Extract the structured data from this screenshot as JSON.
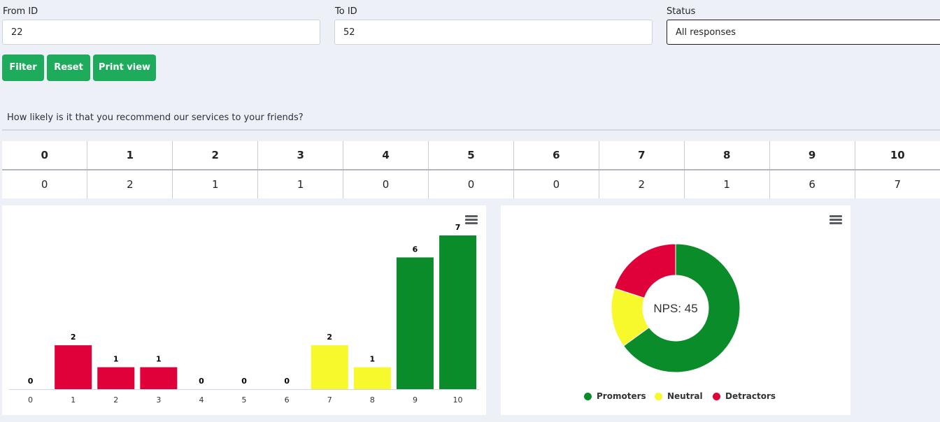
{
  "filters": {
    "from": {
      "label": "From ID",
      "value": "22"
    },
    "to": {
      "label": "To ID",
      "value": "52"
    },
    "status": {
      "label": "Status",
      "value": "All responses"
    }
  },
  "buttons": {
    "filter": "Filter",
    "reset": "Reset",
    "print": "Print view"
  },
  "question": "How likely is it that you recommend our services to your friends?",
  "score_table": {
    "headers": [
      "0",
      "1",
      "2",
      "3",
      "4",
      "5",
      "6",
      "7",
      "8",
      "9",
      "10"
    ],
    "counts": [
      "0",
      "2",
      "1",
      "1",
      "0",
      "0",
      "0",
      "2",
      "1",
      "6",
      "7"
    ]
  },
  "colors": {
    "detractor": "#e0003a",
    "neutral": "#f7f92c",
    "promoter": "#0a8c2a",
    "button": "#1eab5c"
  },
  "icons": {
    "chart_menu": "hamburger-menu-icon"
  },
  "chart_data": [
    {
      "type": "bar",
      "categories": [
        "0",
        "1",
        "2",
        "3",
        "4",
        "5",
        "6",
        "7",
        "8",
        "9",
        "10"
      ],
      "values": [
        0,
        2,
        1,
        1,
        0,
        0,
        0,
        2,
        1,
        6,
        7
      ],
      "groups": [
        "detractor",
        "detractor",
        "detractor",
        "detractor",
        "detractor",
        "detractor",
        "detractor",
        "neutral",
        "neutral",
        "promoter",
        "promoter"
      ],
      "title": "",
      "xlabel": "",
      "ylabel": "",
      "ylim": [
        0,
        7
      ],
      "data_labels": true
    },
    {
      "type": "pie",
      "donut": true,
      "center_label": "NPS: 45",
      "slices": [
        {
          "name": "Promoters",
          "value": 13,
          "color": "#0a8c2a"
        },
        {
          "name": "Neutral",
          "value": 3,
          "color": "#f7f92c"
        },
        {
          "name": "Detractors",
          "value": 4,
          "color": "#e0003a"
        }
      ],
      "legend": "bottom"
    }
  ]
}
